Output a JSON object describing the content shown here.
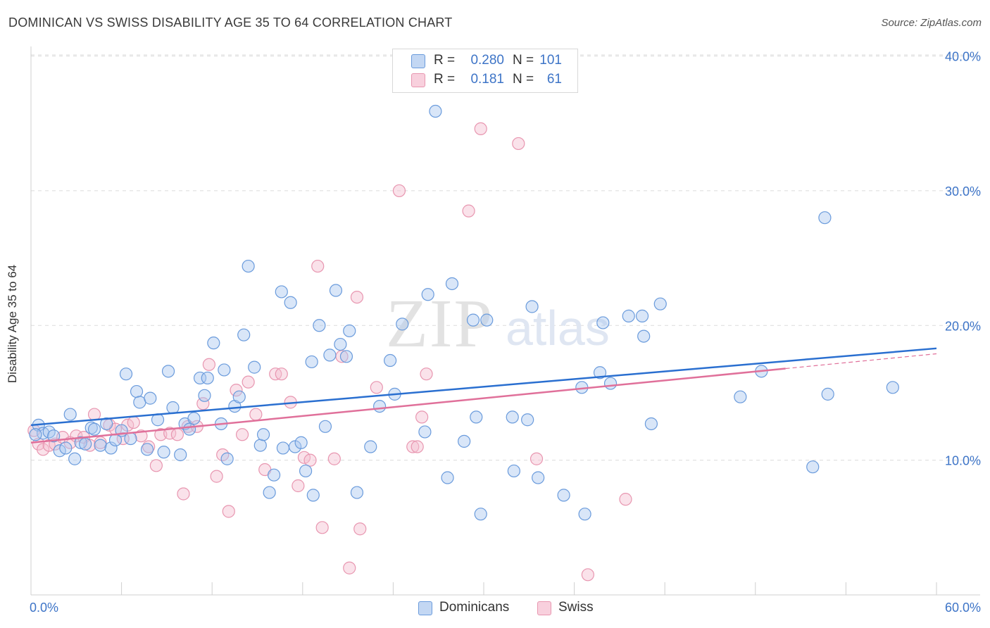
{
  "title": "DOMINICAN VS SWISS DISABILITY AGE 35 TO 64 CORRELATION CHART",
  "source": "Source: ZipAtlas.com",
  "watermark": {
    "zip": "ZIP",
    "atlas": "atlas"
  },
  "colors": {
    "dominican_fill": "#aac7f0",
    "dominican_stroke": "#6a9bdc",
    "dominican_line": "#2a6fd0",
    "swiss_fill": "#f5bfd0",
    "swiss_stroke": "#e896b0",
    "swiss_line": "#e0709a",
    "axis_text": "#3d74c7",
    "grid": "#dcdcdc"
  },
  "legend": {
    "rows": [
      {
        "r_label": "R =",
        "r_value": "0.280",
        "n_label": "N =",
        "n_value": "101"
      },
      {
        "r_label": "R =",
        "r_value": "0.181",
        "n_label": "N =",
        "n_value": "61"
      }
    ]
  },
  "bottom_legend": {
    "dominican": "Dominicans",
    "swiss": "Swiss"
  },
  "chart_data": {
    "type": "scatter",
    "title": "DOMINICAN VS SWISS DISABILITY AGE 35 TO 64 CORRELATION CHART",
    "xlabel": "",
    "ylabel": "Disability Age 35 to 64",
    "xlim": [
      0,
      60
    ],
    "ylim": [
      0,
      40.5
    ],
    "x_tick_labels": [
      "0.0%",
      "60.0%"
    ],
    "y_ticks": [
      10,
      20,
      30,
      40
    ],
    "y_tick_labels": [
      "10.0%",
      "20.0%",
      "30.0%",
      "40.0%"
    ],
    "grid": true,
    "legend_position": "top-center",
    "series": [
      {
        "name": "Dominicans",
        "r": 0.28,
        "n": 101,
        "trend": {
          "x": [
            0,
            60
          ],
          "y": [
            12.6,
            18.3
          ]
        },
        "points": [
          [
            0.5,
            12.6
          ],
          [
            0.8,
            12.0
          ],
          [
            1.2,
            12.1
          ],
          [
            1.5,
            11.8
          ],
          [
            1.9,
            10.7
          ],
          [
            2.3,
            10.9
          ],
          [
            2.6,
            13.4
          ],
          [
            2.9,
            10.1
          ],
          [
            3.3,
            11.3
          ],
          [
            3.6,
            11.2
          ],
          [
            4.0,
            12.4
          ],
          [
            4.2,
            12.3
          ],
          [
            4.6,
            11.1
          ],
          [
            5.0,
            12.7
          ],
          [
            5.3,
            10.9
          ],
          [
            5.6,
            11.5
          ],
          [
            6.0,
            12.2
          ],
          [
            6.3,
            16.4
          ],
          [
            6.6,
            11.6
          ],
          [
            7.0,
            15.1
          ],
          [
            7.2,
            14.3
          ],
          [
            7.7,
            10.8
          ],
          [
            7.9,
            14.6
          ],
          [
            8.4,
            13.0
          ],
          [
            8.8,
            10.6
          ],
          [
            9.1,
            16.6
          ],
          [
            9.4,
            13.9
          ],
          [
            9.9,
            10.4
          ],
          [
            10.2,
            12.7
          ],
          [
            10.5,
            12.3
          ],
          [
            10.8,
            13.1
          ],
          [
            11.2,
            16.1
          ],
          [
            11.5,
            14.8
          ],
          [
            11.7,
            16.1
          ],
          [
            12.1,
            18.7
          ],
          [
            12.6,
            12.7
          ],
          [
            12.8,
            16.7
          ],
          [
            13.0,
            10.1
          ],
          [
            13.5,
            14.0
          ],
          [
            13.8,
            14.7
          ],
          [
            14.1,
            19.3
          ],
          [
            14.4,
            24.4
          ],
          [
            14.8,
            16.9
          ],
          [
            15.2,
            11.1
          ],
          [
            15.4,
            11.9
          ],
          [
            15.8,
            7.6
          ],
          [
            16.1,
            8.9
          ],
          [
            16.6,
            22.5
          ],
          [
            16.7,
            10.9
          ],
          [
            17.2,
            21.7
          ],
          [
            17.5,
            11.0
          ],
          [
            17.9,
            11.3
          ],
          [
            18.2,
            9.2
          ],
          [
            18.6,
            17.3
          ],
          [
            18.7,
            7.4
          ],
          [
            19.1,
            20.0
          ],
          [
            19.5,
            12.5
          ],
          [
            19.8,
            17.8
          ],
          [
            20.2,
            22.6
          ],
          [
            20.5,
            18.6
          ],
          [
            20.9,
            17.7
          ],
          [
            21.1,
            19.6
          ],
          [
            21.6,
            7.6
          ],
          [
            22.5,
            11.0
          ],
          [
            23.1,
            14.0
          ],
          [
            23.8,
            17.4
          ],
          [
            24.1,
            14.9
          ],
          [
            24.6,
            20.1
          ],
          [
            26.1,
            12.1
          ],
          [
            26.3,
            22.3
          ],
          [
            26.8,
            35.9
          ],
          [
            27.6,
            8.7
          ],
          [
            27.9,
            23.1
          ],
          [
            28.7,
            11.4
          ],
          [
            29.3,
            20.4
          ],
          [
            29.5,
            13.2
          ],
          [
            29.8,
            6.0
          ],
          [
            30.2,
            20.4
          ],
          [
            31.9,
            13.2
          ],
          [
            32.0,
            9.2
          ],
          [
            32.9,
            13.0
          ],
          [
            33.2,
            21.4
          ],
          [
            33.6,
            8.7
          ],
          [
            35.3,
            7.4
          ],
          [
            36.5,
            15.4
          ],
          [
            36.7,
            6.0
          ],
          [
            37.7,
            16.5
          ],
          [
            37.9,
            20.2
          ],
          [
            38.4,
            15.7
          ],
          [
            39.6,
            20.7
          ],
          [
            40.5,
            20.7
          ],
          [
            40.6,
            19.2
          ],
          [
            41.1,
            12.7
          ],
          [
            41.7,
            21.6
          ],
          [
            47.0,
            14.7
          ],
          [
            48.4,
            16.6
          ],
          [
            51.8,
            9.5
          ],
          [
            52.6,
            28.0
          ],
          [
            52.8,
            14.9
          ],
          [
            57.1,
            15.4
          ],
          [
            0.3,
            11.9
          ]
        ]
      },
      {
        "name": "Swiss",
        "r": 0.181,
        "n": 61,
        "trend": {
          "x": [
            0,
            50
          ],
          "y": [
            11.3,
            16.8
          ]
        },
        "trend_dashed": {
          "x": [
            50,
            60
          ],
          "y": [
            16.8,
            17.9
          ]
        },
        "points": [
          [
            0.2,
            12.2
          ],
          [
            0.5,
            11.2
          ],
          [
            0.8,
            10.8
          ],
          [
            1.2,
            11.1
          ],
          [
            1.6,
            11.2
          ],
          [
            2.1,
            11.7
          ],
          [
            2.6,
            11.3
          ],
          [
            3.0,
            11.8
          ],
          [
            3.5,
            11.7
          ],
          [
            3.9,
            11.1
          ],
          [
            4.2,
            13.4
          ],
          [
            4.6,
            11.3
          ],
          [
            5.2,
            12.6
          ],
          [
            5.6,
            12.3
          ],
          [
            6.1,
            11.6
          ],
          [
            6.4,
            12.6
          ],
          [
            6.8,
            12.8
          ],
          [
            7.3,
            11.8
          ],
          [
            7.8,
            11.0
          ],
          [
            8.3,
            9.6
          ],
          [
            8.6,
            11.9
          ],
          [
            9.2,
            12.0
          ],
          [
            9.7,
            11.9
          ],
          [
            10.1,
            7.5
          ],
          [
            10.4,
            12.5
          ],
          [
            11.0,
            12.5
          ],
          [
            11.4,
            14.2
          ],
          [
            11.8,
            17.1
          ],
          [
            12.3,
            8.8
          ],
          [
            12.7,
            10.4
          ],
          [
            13.1,
            6.2
          ],
          [
            13.6,
            15.2
          ],
          [
            14.0,
            11.9
          ],
          [
            14.4,
            15.8
          ],
          [
            14.9,
            13.4
          ],
          [
            15.5,
            9.3
          ],
          [
            16.2,
            16.4
          ],
          [
            16.6,
            16.4
          ],
          [
            17.2,
            14.3
          ],
          [
            17.7,
            8.1
          ],
          [
            18.1,
            10.2
          ],
          [
            18.5,
            10.0
          ],
          [
            19.0,
            24.4
          ],
          [
            19.3,
            5.0
          ],
          [
            20.1,
            10.1
          ],
          [
            20.6,
            17.7
          ],
          [
            21.1,
            2.0
          ],
          [
            21.6,
            22.1
          ],
          [
            21.8,
            4.9
          ],
          [
            22.9,
            15.4
          ],
          [
            24.4,
            30.0
          ],
          [
            25.3,
            11.0
          ],
          [
            25.6,
            11.0
          ],
          [
            25.9,
            13.2
          ],
          [
            26.2,
            16.4
          ],
          [
            29.0,
            28.5
          ],
          [
            29.8,
            34.6
          ],
          [
            32.3,
            33.5
          ],
          [
            33.5,
            10.1
          ],
          [
            36.9,
            1.5
          ],
          [
            39.4,
            7.1
          ]
        ]
      }
    ]
  }
}
